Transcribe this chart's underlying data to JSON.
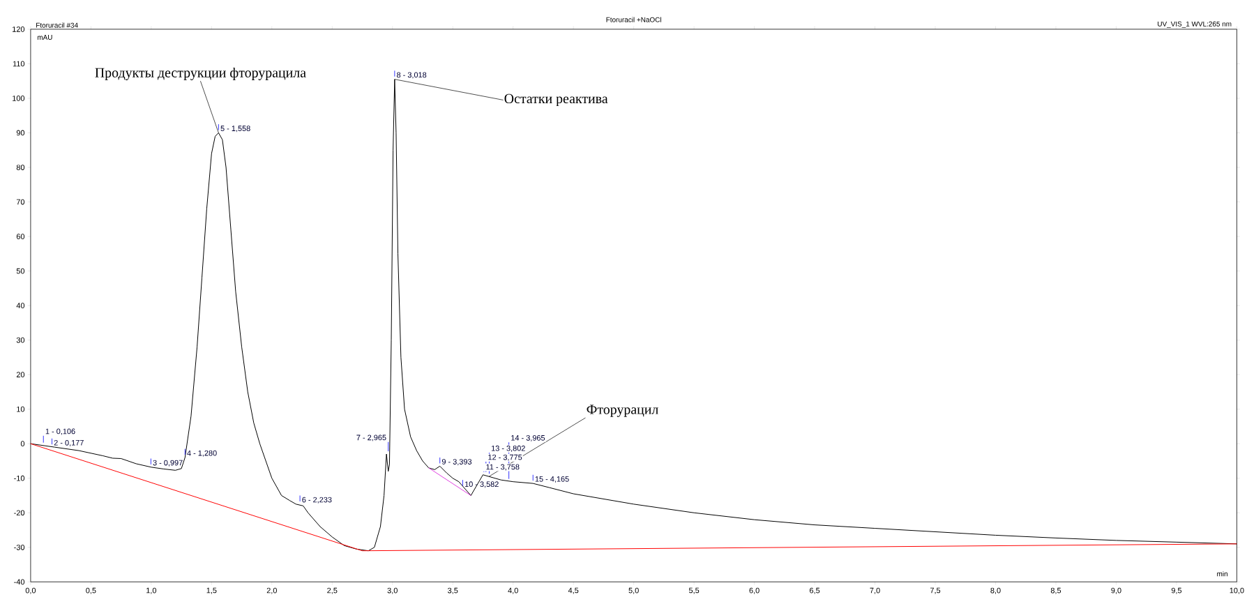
{
  "chart_data": {
    "type": "line",
    "title": "Ftoruracil +NaOCl",
    "xlabel": "min",
    "ylabel": "mAU",
    "xlim": [
      0,
      10
    ],
    "ylim": [
      -40,
      120
    ],
    "xticks": [
      {
        "value": 0,
        "label": "0,0"
      },
      {
        "value": 0.5,
        "label": "0,5"
      },
      {
        "value": 1,
        "label": "1,0"
      },
      {
        "value": 1.5,
        "label": "1,5"
      },
      {
        "value": 2,
        "label": "2,0"
      },
      {
        "value": 2.5,
        "label": "2,5"
      },
      {
        "value": 3,
        "label": "3,0"
      },
      {
        "value": 3.5,
        "label": "3,5"
      },
      {
        "value": 4,
        "label": "4,0"
      },
      {
        "value": 4.5,
        "label": "4,5"
      },
      {
        "value": 5,
        "label": "5,0"
      },
      {
        "value": 5.5,
        "label": "5,5"
      },
      {
        "value": 6,
        "label": "6,0"
      },
      {
        "value": 6.5,
        "label": "6,5"
      },
      {
        "value": 7,
        "label": "7,0"
      },
      {
        "value": 7.5,
        "label": "7,5"
      },
      {
        "value": 8,
        "label": "8,0"
      },
      {
        "value": 8.5,
        "label": "8,5"
      },
      {
        "value": 9,
        "label": "9,0"
      },
      {
        "value": 9.5,
        "label": "9,5"
      },
      {
        "value": 10,
        "label": "10,0"
      }
    ],
    "yticks": [
      -40,
      -30,
      -20,
      -10,
      0,
      10,
      20,
      30,
      40,
      50,
      60,
      70,
      80,
      90,
      100,
      110,
      120
    ],
    "grid": false,
    "marker": "none",
    "line_style": "solid",
    "series": [
      {
        "color": "#000000",
        "x": [
          0,
          0.2,
          0.4,
          0.6,
          0.68,
          0.75,
          0.875,
          1.0,
          1.1,
          1.2,
          1.25,
          1.28,
          1.33,
          1.38,
          1.42,
          1.46,
          1.5,
          1.53,
          1.558,
          1.59,
          1.62,
          1.66,
          1.7,
          1.75,
          1.8,
          1.85,
          1.9,
          2.0,
          2.08,
          2.15,
          2.2,
          2.26,
          2.3,
          2.4,
          2.5,
          2.6,
          2.7,
          2.8,
          2.85,
          2.9,
          2.93,
          2.95,
          2.965,
          2.975,
          2.99,
          3.005,
          3.018,
          3.03,
          3.045,
          3.07,
          3.1,
          3.15,
          3.2,
          3.25,
          3.3,
          3.35,
          3.393,
          3.45,
          3.5,
          3.55,
          3.6,
          3.65,
          3.7,
          3.75,
          3.8,
          3.9,
          4.0,
          4.1,
          4.165,
          4.3,
          4.5,
          5.0,
          5.5,
          6.0,
          6.5,
          7.0,
          7.5,
          8.0,
          8.5,
          9.0,
          9.5,
          10.0
        ],
        "values": [
          0,
          -1,
          -2,
          -3.5,
          -4.2,
          -4.3,
          -5.8,
          -6.8,
          -7.3,
          -7.7,
          -7.2,
          -4,
          8,
          28,
          48,
          68,
          84,
          89,
          90,
          88,
          80,
          62,
          44,
          28,
          15,
          6,
          0,
          -10,
          -15,
          -16.5,
          -17.5,
          -18,
          -20,
          -24,
          -27,
          -29.5,
          -30.5,
          -31,
          -30,
          -24,
          -15,
          -3,
          -8,
          -6,
          30,
          85,
          105.5,
          90,
          55,
          25,
          10,
          2,
          -2,
          -5,
          -7,
          -7.5,
          -6.5,
          -8.5,
          -10,
          -11,
          -13,
          -15,
          -12,
          -9,
          -9.5,
          -10.5,
          -11,
          -11.3,
          -11.5,
          -12.7,
          -14.5,
          -17.5,
          -20,
          -22,
          -23.5,
          -24.5,
          -25.5,
          -26.5,
          -27.3,
          -28,
          -28.5,
          -29
        ]
      },
      {
        "color": "#ff0000",
        "x": [
          0,
          2.75,
          10
        ],
        "values": [
          0,
          -31,
          -29
        ]
      },
      {
        "color": "#e040e0",
        "x": [
          3.3,
          3.65
        ],
        "values": [
          -7,
          -15
        ]
      }
    ],
    "annotations": [
      "Ftoruracil #34",
      "UV_VIS_1 WVL:265 nm",
      {
        "text": "Продукты деструкции фторурацила",
        "x": 1.558,
        "y": 90
      },
      {
        "text": "Остатки реактива",
        "x": 3.018,
        "y": 105.5
      },
      {
        "text": "Фторурацил",
        "x": 3.8,
        "y": -9.5
      },
      {
        "text": "1 - 0,106",
        "x": 0.106,
        "y": -0.5
      },
      {
        "text": "2 - 0,177",
        "x": 0.177,
        "y": -1
      },
      {
        "text": "3 - 0,997",
        "x": 0.997,
        "y": -6.8
      },
      {
        "text": "4 - 1,280",
        "x": 1.28,
        "y": -4
      },
      {
        "text": "5 - 1,558",
        "x": 1.558,
        "y": 90
      },
      {
        "text": "6 - 2,233",
        "x": 2.233,
        "y": -17.5
      },
      {
        "text": "7 - 2,965",
        "x": 2.965,
        "y": -3
      },
      {
        "text": "8 - 3,018",
        "x": 3.018,
        "y": 105.5
      },
      {
        "text": "9 - 3,393",
        "x": 3.393,
        "y": -6.5
      },
      {
        "text": "10 - 3,582",
        "x": 3.582,
        "y": -13
      },
      {
        "text": "11 - 3,758",
        "x": 3.758,
        "y": -9
      },
      {
        "text": "12 - 3,775",
        "x": 3.775,
        "y": -9
      },
      {
        "text": "13 - 3,802",
        "x": 3.802,
        "y": -9.5
      },
      {
        "text": "14 - 3,965",
        "x": 3.965,
        "y": -11
      },
      {
        "text": "15 - 4,165",
        "x": 4.165,
        "y": -11.5
      }
    ]
  }
}
